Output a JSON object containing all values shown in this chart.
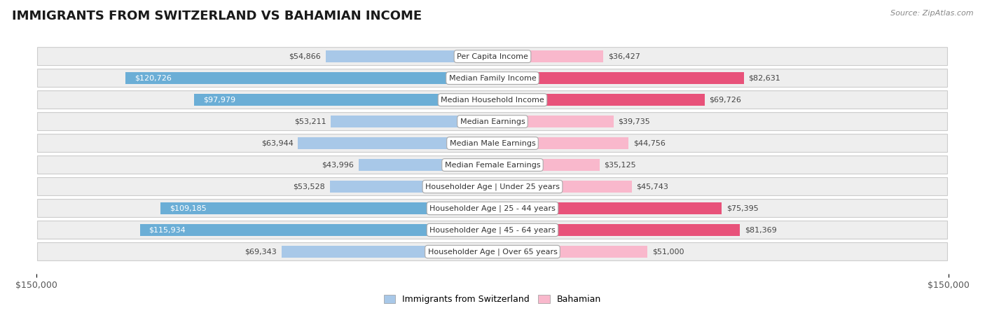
{
  "title": "IMMIGRANTS FROM SWITZERLAND VS BAHAMIAN INCOME",
  "source": "Source: ZipAtlas.com",
  "categories": [
    "Per Capita Income",
    "Median Family Income",
    "Median Household Income",
    "Median Earnings",
    "Median Male Earnings",
    "Median Female Earnings",
    "Householder Age | Under 25 years",
    "Householder Age | 25 - 44 years",
    "Householder Age | 45 - 64 years",
    "Householder Age | Over 65 years"
  ],
  "swiss_values": [
    54866,
    120726,
    97979,
    53211,
    63944,
    43996,
    53528,
    109185,
    115934,
    69343
  ],
  "bahamian_values": [
    36427,
    82631,
    69726,
    39735,
    44756,
    35125,
    45743,
    75395,
    81369,
    51000
  ],
  "swiss_labels": [
    "$54,866",
    "$120,726",
    "$97,979",
    "$53,211",
    "$63,944",
    "$43,996",
    "$53,528",
    "$109,185",
    "$115,934",
    "$69,343"
  ],
  "bahamian_labels": [
    "$36,427",
    "$82,631",
    "$69,726",
    "$39,735",
    "$44,756",
    "$35,125",
    "$45,743",
    "$75,395",
    "$81,369",
    "$51,000"
  ],
  "swiss_color_light": "#A8C8E8",
  "swiss_color_dark": "#6BAED6",
  "bahamian_color_light": "#F9B8CC",
  "bahamian_color_dark": "#E8527A",
  "swiss_threshold": 70000,
  "bahamian_threshold": 65000,
  "max_value": 150000,
  "bg_color": "#ffffff",
  "row_bg_color": "#eeeeee",
  "title_fontsize": 13,
  "axis_label_fontsize": 9,
  "bar_label_fontsize": 8,
  "cat_label_fontsize": 8,
  "tick_label": "$150,000",
  "legend_swiss": "Immigrants from Switzerland",
  "legend_bahamian": "Bahamian"
}
